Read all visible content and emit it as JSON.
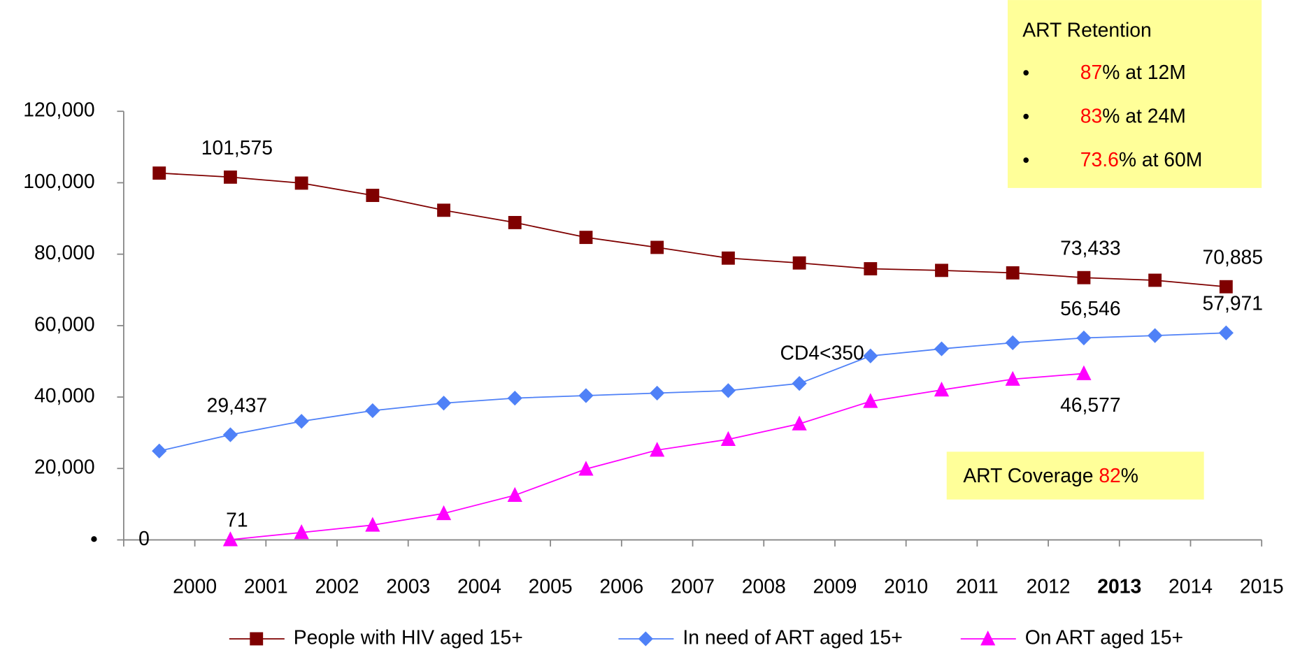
{
  "chart_data": {
    "type": "line",
    "categories": [
      "2000",
      "2001",
      "2002",
      "2003",
      "2004",
      "2005",
      "2006",
      "2007",
      "2008",
      "2009",
      "2010",
      "2011",
      "2012",
      "2013",
      "2014",
      "2015"
    ],
    "highlight_index": 13,
    "highlight_color": "#ff0000",
    "ylim": [
      0,
      120000
    ],
    "yticks": [
      {
        "value": 0,
        "label": "0"
      },
      {
        "value": 20000,
        "label": "20,000"
      },
      {
        "value": 40000,
        "label": "40,000"
      },
      {
        "value": 60000,
        "label": "60,000"
      },
      {
        "value": 80000,
        "label": "80,000"
      },
      {
        "value": 100000,
        "label": "100,000"
      },
      {
        "value": 120000,
        "label": "120,000"
      }
    ],
    "series": [
      {
        "name": "People with HIV aged 15+",
        "color": "#7f0000",
        "marker": "square",
        "label_color": "#c00000",
        "label_position": "above",
        "values": [
          102700,
          101575,
          99900,
          96460,
          92300,
          88850,
          84700,
          81900,
          78900,
          77540,
          75920,
          75460,
          74770,
          73433,
          72700,
          70885
        ],
        "value_labels": [
          null,
          "101,575",
          null,
          null,
          null,
          null,
          null,
          null,
          null,
          null,
          null,
          null,
          null,
          "73,433",
          null,
          "70,885"
        ]
      },
      {
        "name": "In need of ART aged 15+",
        "color": "#4f81f7",
        "marker": "diamond",
        "label_color": "#0000c0",
        "label_position": "above",
        "values": [
          24900,
          29437,
          33200,
          36200,
          38300,
          39700,
          40400,
          41100,
          41800,
          43800,
          51500,
          53500,
          55200,
          56546,
          57200,
          57971
        ],
        "value_labels": [
          null,
          "29,437",
          null,
          null,
          null,
          null,
          null,
          null,
          null,
          null,
          null,
          null,
          null,
          "56,546",
          null,
          "57,971"
        ]
      },
      {
        "name": "On ART aged 15+",
        "color": "#ff00ff",
        "marker": "triangle",
        "label_color": "#e6207f",
        "label_position": "below",
        "values": [
          null,
          71,
          2077,
          4150,
          7400,
          12500,
          19850,
          25150,
          28150,
          32500,
          38800,
          42000,
          45000,
          46577,
          null,
          null
        ],
        "value_labels": [
          null,
          "71",
          null,
          null,
          null,
          null,
          null,
          null,
          null,
          null,
          null,
          null,
          null,
          "46,577",
          null,
          null
        ]
      }
    ],
    "annotation": "CD4<350",
    "retention_box": {
      "title": "ART Retention",
      "items": [
        {
          "bullet": "•",
          "value": "87",
          "text": "% at 12M"
        },
        {
          "bullet": "•",
          "value": "83",
          "text": "% at 24M"
        },
        {
          "bullet": "•",
          "value": "73.6",
          "text": "% at 60M"
        }
      ]
    },
    "coverage_box": {
      "text": "ART Coverage ",
      "value": "82",
      "suffix": "%"
    },
    "box_color": "#ffff99",
    "highlight_text_color": "#ff0000"
  }
}
